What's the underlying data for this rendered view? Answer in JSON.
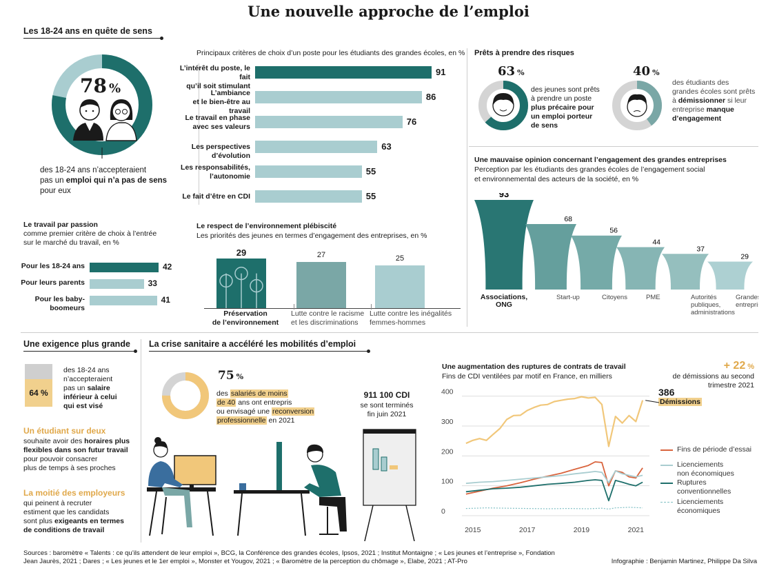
{
  "title": "Une nouvelle approche de l’emploi",
  "young": {
    "heading": "Les 18-24 ans en quête de sens",
    "pct_value": "78",
    "pct_unit": "%",
    "text_1": "des 18-24 ans n’accepteraient",
    "text_2": "pas un ",
    "text_bold": "emploi qui n’a pas de sens",
    "text_3": "pour eux"
  },
  "criteria": {
    "heading": "Principaux critères de choix d’un poste pour les étudiants des grandes écoles, en %",
    "items": [
      {
        "label_1": "L’intérêt du poste, le fait",
        "label_2": "qu’il soit stimulant",
        "value": 91,
        "highlight": true
      },
      {
        "label_1": "L’ambiance",
        "label_2": "et le bien-être au travail",
        "value": 86
      },
      {
        "label_1": "Le travail en phase",
        "label_2": "avec ses valeurs",
        "value": 76
      },
      {
        "label_1": "Les perspectives d’évolution",
        "label_2": "",
        "value": 63
      },
      {
        "label_1": "Les responsabilités,",
        "label_2": "l’autonomie",
        "value": 55
      },
      {
        "label_1": "Le fait d’être en CDI",
        "label_2": "",
        "value": 55
      }
    ]
  },
  "risks": {
    "heading": "Prêts à prendre des risques",
    "a_pct": "63",
    "a_unit": "%",
    "a_text_1": "des jeunes sont prêts",
    "a_text_2": "à prendre un poste",
    "a_bold_1": "plus précaire pour",
    "a_bold_2": "un emploi porteur",
    "a_bold_3": "de sens",
    "b_pct": "40",
    "b_unit": "%",
    "b_text_1": "des étudiants des",
    "b_text_2": "grandes écoles sont prêts",
    "b_text_3": "à ",
    "b_bold_1": "démissionner",
    "b_text_4": " si leur",
    "b_text_5": "entreprise ",
    "b_bold_2": "manque",
    "b_bold_3": "d’engagement"
  },
  "passion": {
    "heading": "Le travail par passion",
    "sub_1": "comme premier critère de choix à l’entrée",
    "sub_2": "sur le marché du travail, en %",
    "items": [
      {
        "label_1": "Pour les 18-24 ans",
        "label_2": "",
        "value": 42,
        "highlight": true
      },
      {
        "label_1": "Pour leurs parents",
        "label_2": "",
        "value": 33
      },
      {
        "label_1": "Pour les baby-",
        "label_2": "boomeurs",
        "value": 41
      }
    ]
  },
  "environment": {
    "heading": "Le respect de l’environnement plébiscité",
    "sub": "Les priorités des jeunes en termes d’engagement des entreprises, en %",
    "items": [
      {
        "value": 29,
        "label_1": "Préservation",
        "label_2": "de l’environnement",
        "bold": true
      },
      {
        "value": 27,
        "label_1": "Lutte contre le racisme",
        "label_2": "et les discriminations"
      },
      {
        "value": 25,
        "label_1": "Lutte contre les inégalités",
        "label_2": "femmes-hommes"
      }
    ]
  },
  "opinion": {
    "heading": "Une mauvaise opinion concernant l’engagement des grandes entreprises",
    "sub_1": "Perception par les étudiants des grandes écoles de l’engagement social",
    "sub_2": "et environnemental des acteurs de la société, en %",
    "items": [
      {
        "value": 93,
        "label_1": "Associations,",
        "label_2": "ONG",
        "label_3": "",
        "bold": true
      },
      {
        "value": 68,
        "label_1": "Start-up",
        "label_2": "",
        "label_3": ""
      },
      {
        "value": 56,
        "label_1": "Citoyens",
        "label_2": "",
        "label_3": ""
      },
      {
        "value": 44,
        "label_1": "PME",
        "label_2": "",
        "label_3": ""
      },
      {
        "value": 37,
        "label_1": "Autorités",
        "label_2": "publiques,",
        "label_3": "administrations"
      },
      {
        "value": 29,
        "label_1": "Grandes",
        "label_2": "entreprises",
        "label_3": ""
      }
    ]
  },
  "demand": {
    "heading": "Une exigence plus grande",
    "pct": "64 %",
    "t1": "des 18-24 ans",
    "t2": "n’accepteraient",
    "t3": "pas un ",
    "t3b": "salaire",
    "t4": "inférieur à celui",
    "t5": "qui est visé",
    "student_title": "Un étudiant sur deux",
    "s1": "souhaite avoir des ",
    "s1b": "horaires plus",
    "s2": "flexibles dans son futur travail",
    "s3": "pour pouvoir consacrer",
    "s4": "plus de temps à ses proches",
    "employer_title": "La moitié des employeurs",
    "e1": "qui peinent à recruter",
    "e2": "estiment que les candidats",
    "e3": "sont plus ",
    "e3b": "exigeants en termes",
    "e4": "de conditions de travail"
  },
  "crisis": {
    "heading": "La crise sanitaire a accéléré les mobilités d’emploi",
    "pct": "75",
    "pct_unit": "%",
    "c1": "des ",
    "c1h": "salariés de moins",
    "c2h": "de 40",
    "c2": " ans ont entrepris",
    "c3": "ou envisagé une ",
    "c3h": "reconversion",
    "c4h": "professionnelle",
    "c4": " en 2021",
    "cdi_value": "911 100 CDI",
    "cdi_1": "se sont terminés",
    "cdi_2": "fin juin 2021"
  },
  "ruptures": {
    "heading": "Une augmentation des ruptures de contrats de travail",
    "sub": "Fins de CDI ventilées par motif en France, en milliers",
    "callout_pct": "+ 22",
    "callout_unit": "%",
    "callout_1": "de démissions au second",
    "callout_2": "trimestre 2021",
    "last_value": "386",
    "last_label": "Démissions",
    "legend": [
      {
        "label_1": "Fins de période d’essai",
        "label_2": "",
        "color": "#d9633c"
      },
      {
        "label_1": "Licenciements",
        "label_2": "non économiques",
        "color": "#a9cdd0"
      },
      {
        "label_1": "Ruptures",
        "label_2": "conventionnelles",
        "color": "#1e6f6b"
      },
      {
        "label_1": "Licenciements",
        "label_2": "économiques",
        "color": "#7fbfc4"
      }
    ]
  },
  "chart_data": [
    {
      "type": "bar",
      "title": "Principaux critères de choix d’un poste pour les étudiants des grandes écoles, en %",
      "categories": [
        "L’intérêt du poste, le fait qu’il soit stimulant",
        "L’ambiance et le bien-être au travail",
        "Le travail en phase avec ses valeurs",
        "Les perspectives d’évolution",
        "Les responsabilités, l’autonomie",
        "Le fait d’être en CDI"
      ],
      "values": [
        91,
        86,
        76,
        63,
        55,
        55
      ],
      "orientation": "horizontal"
    },
    {
      "type": "bar",
      "title": "Le travail par passion",
      "categories": [
        "Pour les 18-24 ans",
        "Pour leurs parents",
        "Pour les baby-boomeurs"
      ],
      "values": [
        42,
        33,
        41
      ],
      "orientation": "horizontal"
    },
    {
      "type": "bar",
      "title": "Le respect de l’environnement plébiscité",
      "categories": [
        "Préservation de l’environnement",
        "Lutte contre le racisme et les discriminations",
        "Lutte contre les inégalités femmes-hommes"
      ],
      "values": [
        29,
        27,
        25
      ]
    },
    {
      "type": "bar",
      "title": "Une mauvaise opinion concernant l’engagement des grandes entreprises",
      "categories": [
        "Associations, ONG",
        "Start-up",
        "Citoyens",
        "PME",
        "Autorités publiques, administrations",
        "Grandes entreprises"
      ],
      "values": [
        93,
        68,
        56,
        44,
        37,
        29
      ]
    },
    {
      "type": "line",
      "title": "Une augmentation des ruptures de contrats de travail",
      "x_ticks": [
        "2015",
        "2017",
        "2019",
        "2021"
      ],
      "y_ticks": [
        0,
        100,
        200,
        300,
        400
      ],
      "ylim": [
        0,
        420
      ],
      "xlim": [
        2014.6,
        2021.5
      ],
      "series": [
        {
          "name": "Démissions",
          "color": "#f1c77a",
          "width": 2.2,
          "points": [
            [
              2014.75,
              242
            ],
            [
              2015,
              252
            ],
            [
              2015.25,
              258
            ],
            [
              2015.5,
              252
            ],
            [
              2015.75,
              272
            ],
            [
              2016,
              292
            ],
            [
              2016.25,
              322
            ],
            [
              2016.5,
              335
            ],
            [
              2016.75,
              336
            ],
            [
              2017,
              352
            ],
            [
              2017.25,
              362
            ],
            [
              2017.5,
              370
            ],
            [
              2017.75,
              372
            ],
            [
              2018,
              382
            ],
            [
              2018.25,
              386
            ],
            [
              2018.5,
              390
            ],
            [
              2018.75,
              392
            ],
            [
              2019,
              398
            ],
            [
              2019.25,
              394
            ],
            [
              2019.5,
              396
            ],
            [
              2019.75,
              372
            ],
            [
              2020,
              232
            ],
            [
              2020.25,
              332
            ],
            [
              2020.5,
              310
            ],
            [
              2020.75,
              335
            ],
            [
              2021,
              315
            ],
            [
              2021.25,
              386
            ]
          ]
        },
        {
          "name": "Fins de période d’essai",
          "color": "#d9633c",
          "width": 1.8,
          "points": [
            [
              2014.75,
              72
            ],
            [
              2015.25,
              82
            ],
            [
              2015.75,
              92
            ],
            [
              2016.25,
              100
            ],
            [
              2016.75,
              110
            ],
            [
              2017.25,
              122
            ],
            [
              2017.75,
              132
            ],
            [
              2018.25,
              142
            ],
            [
              2018.75,
              155
            ],
            [
              2019.25,
              168
            ],
            [
              2019.5,
              180
            ],
            [
              2019.75,
              178
            ],
            [
              2020,
              100
            ],
            [
              2020.25,
              150
            ],
            [
              2020.5,
              145
            ],
            [
              2020.75,
              130
            ],
            [
              2021,
              126
            ],
            [
              2021.25,
              160
            ]
          ]
        },
        {
          "name": "Licenciements non économiques",
          "color": "#a9cdd0",
          "width": 1.8,
          "points": [
            [
              2014.75,
              108
            ],
            [
              2015.25,
              112
            ],
            [
              2015.75,
              114
            ],
            [
              2016.25,
              118
            ],
            [
              2016.75,
              122
            ],
            [
              2017.25,
              126
            ],
            [
              2017.75,
              130
            ],
            [
              2018.25,
              134
            ],
            [
              2018.75,
              140
            ],
            [
              2019.25,
              145
            ],
            [
              2019.5,
              148
            ],
            [
              2019.75,
              145
            ],
            [
              2020,
              110
            ],
            [
              2020.25,
              150
            ],
            [
              2020.5,
              140
            ],
            [
              2020.75,
              135
            ],
            [
              2021,
              130
            ],
            [
              2021.25,
              135
            ]
          ]
        },
        {
          "name": "Ruptures conventionnelles",
          "color": "#1e6f6b",
          "width": 1.8,
          "points": [
            [
              2014.75,
              80
            ],
            [
              2015.25,
              85
            ],
            [
              2015.75,
              90
            ],
            [
              2016.25,
              92
            ],
            [
              2016.75,
              95
            ],
            [
              2017.25,
              100
            ],
            [
              2017.75,
              105
            ],
            [
              2018.25,
              108
            ],
            [
              2018.75,
              112
            ],
            [
              2019.25,
              118
            ],
            [
              2019.5,
              120
            ],
            [
              2019.75,
              118
            ],
            [
              2020,
              50
            ],
            [
              2020.25,
              118
            ],
            [
              2020.5,
              112
            ],
            [
              2020.75,
              105
            ],
            [
              2021,
              100
            ],
            [
              2021.25,
              112
            ]
          ]
        },
        {
          "name": "Licenciements économiques",
          "color": "#7fbfc4",
          "width": 1.2,
          "dashed": true,
          "points": [
            [
              2014.75,
              24
            ],
            [
              2015.5,
              26
            ],
            [
              2016.25,
              25
            ],
            [
              2017,
              24
            ],
            [
              2017.75,
              23
            ],
            [
              2018.5,
              24
            ],
            [
              2019.25,
              23
            ],
            [
              2019.75,
              25
            ],
            [
              2020,
              22
            ],
            [
              2020.25,
              26
            ],
            [
              2020.75,
              28
            ],
            [
              2021.25,
              26
            ]
          ]
        }
      ]
    }
  ],
  "sources": {
    "line_1": "Sources : baromètre « Talents : ce qu’ils attendent de leur emploi », BCG, la Conférence des grandes écoles, Ipsos, 2021 ; Institut Montaigne ; « Les jeunes et l’entreprise », Fondation",
    "line_2": "Jean Jaurès, 2021 ; Dares ; « Les jeunes et le 1er emploi », Monster et Yougov, 2021 ; « Baromètre de la perception du chômage », Elabe, 2021 ; AT-Pro",
    "credit": "Infographie : Benjamin Martinez, Philippe Da Silva"
  }
}
